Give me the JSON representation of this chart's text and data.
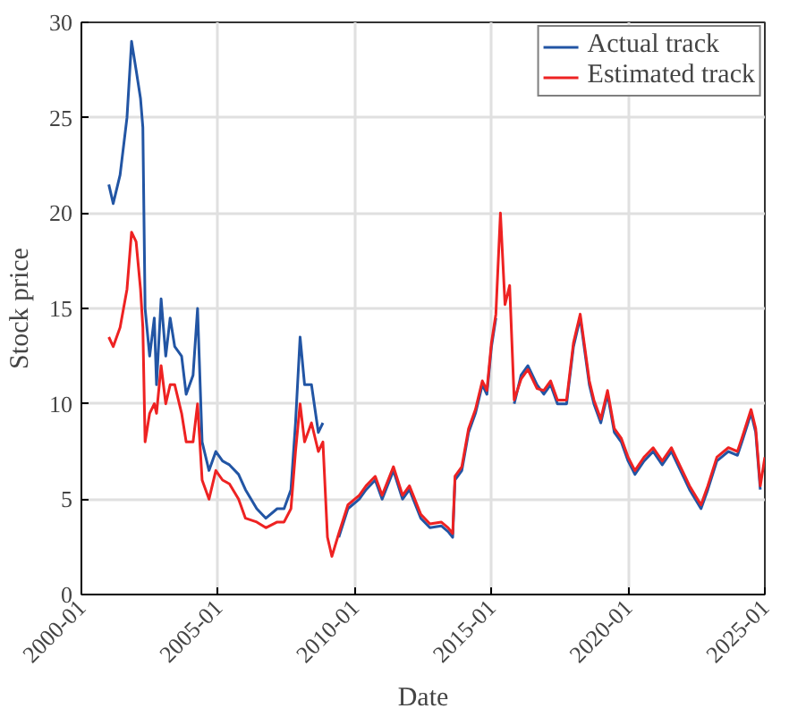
{
  "chart_data": {
    "type": "line",
    "xlabel": "Date",
    "ylabel": "Stock price",
    "x": [
      "2001-01",
      "2001-03",
      "2001-06",
      "2001-09",
      "2001-11",
      "2002-01",
      "2002-03",
      "2002-04",
      "2002-05",
      "2002-07",
      "2002-09",
      "2002-10",
      "2002-12",
      "2003-02",
      "2003-04",
      "2003-06",
      "2003-09",
      "2003-11",
      "2004-02",
      "2004-04",
      "2004-06",
      "2004-09",
      "2004-12",
      "2005-03",
      "2005-06",
      "2005-10",
      "2006-01",
      "2006-06",
      "2006-10",
      "2007-03",
      "2007-06",
      "2007-09",
      "2007-11",
      "2008-01",
      "2008-03",
      "2008-06",
      "2008-09",
      "2008-11",
      "2009-01",
      "2009-03",
      "2009-06",
      "2009-10",
      "2010-03",
      "2010-06",
      "2010-10",
      "2011-01",
      "2011-06",
      "2011-10",
      "2012-01",
      "2012-06",
      "2012-10",
      "2013-03",
      "2013-06",
      "2013-08",
      "2013-09",
      "2013-12",
      "2014-03",
      "2014-06",
      "2014-09",
      "2014-11",
      "2015-01",
      "2015-03",
      "2015-05",
      "2015-07",
      "2015-09",
      "2015-11",
      "2016-02",
      "2016-05",
      "2016-09",
      "2016-12",
      "2017-03",
      "2017-06",
      "2017-10",
      "2018-01",
      "2018-04",
      "2018-08",
      "2018-10",
      "2019-01",
      "2019-04",
      "2019-07",
      "2019-10",
      "2020-01",
      "2020-04",
      "2020-08",
      "2020-12",
      "2021-04",
      "2021-08",
      "2021-12",
      "2022-04",
      "2022-09",
      "2022-12",
      "2023-04",
      "2023-09",
      "2024-01",
      "2024-03",
      "2024-07",
      "2024-09",
      "2024-11",
      "2025-01"
    ],
    "series": [
      {
        "name": "Actual track",
        "color": "#2255a4",
        "values": [
          21.5,
          20.5,
          22,
          25,
          29,
          27.5,
          26,
          24.5,
          15,
          12.5,
          14.5,
          11,
          15.5,
          12.5,
          14.5,
          13,
          12.5,
          10.5,
          11.5,
          15,
          8,
          6.5,
          7.5,
          7,
          6.8,
          6.3,
          5.5,
          4.5,
          4,
          4.5,
          4.5,
          5.5,
          9,
          13.5,
          11,
          11,
          8.5,
          9,
          null,
          null,
          3,
          4.5,
          5,
          5.5,
          6,
          5,
          6.5,
          5,
          5.5,
          4,
          3.5,
          3.6,
          3.3,
          3,
          6,
          6.5,
          8.5,
          9.5,
          11,
          10.5,
          13,
          14.5,
          null,
          null,
          null,
          10,
          11.5,
          12,
          11,
          10.5,
          11,
          10,
          10,
          13,
          14.5,
          11,
          10,
          9,
          10.5,
          8.5,
          8,
          7,
          6.3,
          7,
          7.5,
          6.8,
          7.5,
          6.5,
          5.5,
          4.5,
          5.5,
          7,
          7.5,
          7.3,
          8,
          9.5,
          8.5,
          5.5,
          null
        ]
      },
      {
        "name": "Estimated track",
        "color": "#ee2222",
        "values": [
          13.5,
          13,
          14,
          16,
          19,
          18.5,
          16,
          14,
          8,
          9.5,
          10,
          9.5,
          12,
          10,
          11,
          11,
          9.5,
          8,
          8,
          10,
          6,
          5,
          6.5,
          6,
          5.8,
          5,
          4,
          3.8,
          3.5,
          3.8,
          3.8,
          4.5,
          7.5,
          10,
          8,
          9,
          7.5,
          8,
          3,
          2,
          3.2,
          4.7,
          5.2,
          5.7,
          6.2,
          5.2,
          6.7,
          5.2,
          5.7,
          4.2,
          3.7,
          3.8,
          3.5,
          3.2,
          6.2,
          6.7,
          8.7,
          9.7,
          11.2,
          10.7,
          13.2,
          14.7,
          20,
          15.2,
          16.2,
          10.2,
          11.3,
          11.8,
          10.8,
          10.7,
          11.2,
          10.2,
          10.2,
          13.2,
          14.7,
          11.2,
          10.2,
          9.2,
          10.7,
          8.7,
          8.2,
          7.2,
          6.5,
          7.2,
          7.7,
          7,
          7.7,
          6.7,
          5.7,
          4.7,
          5.7,
          7.2,
          7.7,
          7.5,
          8.2,
          9.7,
          8.7,
          5.7,
          7.2
        ]
      }
    ],
    "xlim": [
      "2000-01",
      "2025-01"
    ],
    "xticks": [
      "2000-01",
      "2005-01",
      "2010-01",
      "2015-01",
      "2020-01",
      "2025-01"
    ],
    "ylim": [
      0,
      30
    ],
    "yticks": [
      0,
      5,
      10,
      15,
      20,
      25,
      30
    ],
    "grid": true,
    "legend": "top right",
    "line_style": "solid",
    "marker": "none"
  }
}
